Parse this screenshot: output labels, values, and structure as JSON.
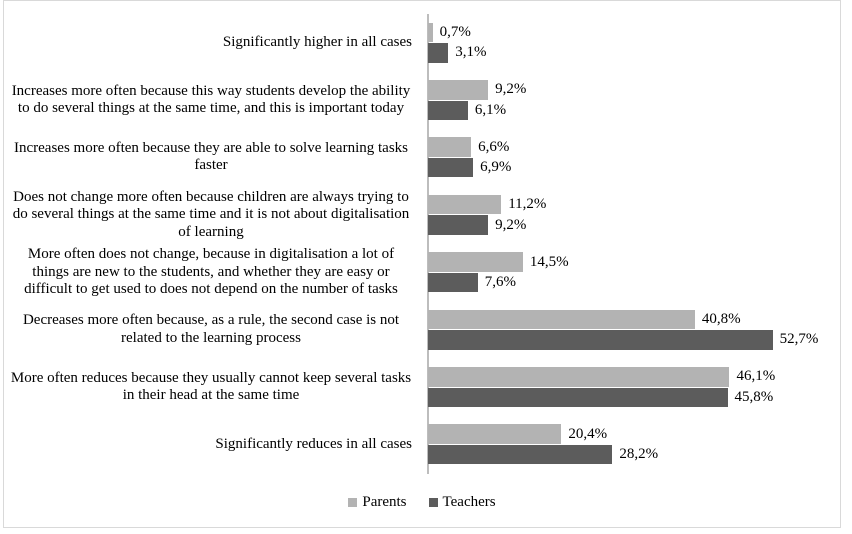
{
  "chart_data": {
    "type": "bar",
    "orientation": "horizontal",
    "title": "",
    "xlabel": "",
    "ylabel": "",
    "xlim": [
      0,
      63
    ],
    "grid": false,
    "legend_position": "bottom",
    "value_label_decimal_separator": ",",
    "categories": [
      "Significantly higher in all cases",
      "Increases more often because this way students develop the ability to do several things at the same time, and this is important today",
      "Increases more often because they are able to solve learning tasks faster",
      "Does not change more often because children are always trying to do several things at the same time and it is not about digitalisation of learning",
      "More often does not change, because in digitalisation a lot of things are new to the students, and whether they are easy or difficult to get used to does not depend on the number of tasks",
      "Decreases more often because, as a rule, the second case is not related to the learning process",
      "More often reduces because they usually cannot keep several tasks in their head at the same time",
      "Significantly reduces in all cases"
    ],
    "series": [
      {
        "name": "Parents",
        "color": "#b3b3b3",
        "values": [
          0.7,
          9.2,
          6.6,
          11.2,
          14.5,
          40.8,
          46.1,
          20.4
        ],
        "value_labels": [
          "0,7%",
          "9,2%",
          "6,6%",
          "11,2%",
          "14,5%",
          "40,8%",
          "46,1%",
          "20,4%"
        ]
      },
      {
        "name": "Teachers",
        "color": "#5c5c5c",
        "values": [
          3.1,
          6.1,
          6.9,
          9.2,
          7.6,
          52.7,
          45.8,
          28.2
        ],
        "value_labels": [
          "3,1%",
          "6,1%",
          "6,9%",
          "9,2%",
          "7,6%",
          "52,7%",
          "45,8%",
          "28,2%"
        ]
      }
    ]
  },
  "legend": {
    "items": [
      {
        "label": "Parents"
      },
      {
        "label": "Teachers"
      }
    ]
  },
  "colors": {
    "figure_border": "#d9d9d9",
    "axis_line": "#bdbdbd",
    "background": "#ffffff",
    "text": "#000000"
  }
}
